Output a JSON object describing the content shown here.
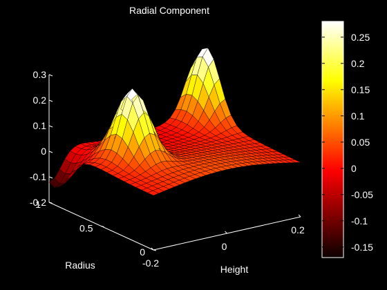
{
  "chart_data": {
    "type": "surface",
    "title": "Radial Component",
    "xlabel": "Height",
    "ylabel": "Radius",
    "zlabel": "",
    "x_range": [
      -0.2,
      0.2
    ],
    "y_range": [
      0,
      1
    ],
    "z_range": [
      -0.2,
      0.3
    ],
    "x_ticks": [
      "-0.2",
      "0",
      "0.2"
    ],
    "y_ticks": [
      "0",
      "0.5",
      "1"
    ],
    "z_ticks": [
      "-0.2",
      "-0.1",
      "0",
      "0.1",
      "0.2",
      "0.3"
    ],
    "colormap": "hot",
    "colorbar_range": [
      -0.17,
      0.28
    ],
    "colorbar_ticks": [
      "-0.15",
      "-0.1",
      "-0.05",
      "0",
      "0.05",
      "0.1",
      "0.15",
      "0.2",
      "0.25"
    ],
    "peaks": [
      {
        "height": -0.1,
        "radius": 0.55,
        "value": 0.28
      },
      {
        "height": 0.2,
        "radius": 0.9,
        "value": 0.27
      },
      {
        "height": -0.2,
        "radius": 0.95,
        "value": -0.16
      }
    ]
  }
}
